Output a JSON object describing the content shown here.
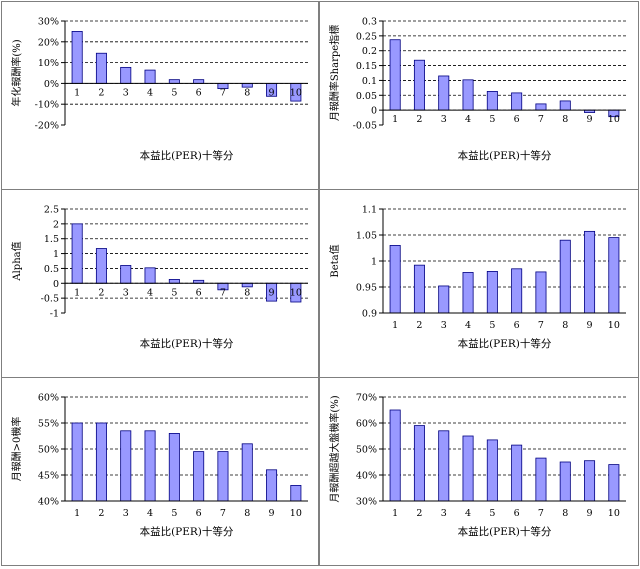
{
  "chart_data": [
    {
      "type": "bar",
      "title": "",
      "xlabel": "本益比(PER)十等分",
      "ylabel": "年化報酬率(%)",
      "categories": [
        "1",
        "2",
        "3",
        "4",
        "5",
        "6",
        "7",
        "8",
        "9",
        "10"
      ],
      "values": [
        25.0,
        14.5,
        7.7,
        6.4,
        1.8,
        1.8,
        -2.5,
        -1.8,
        -6.2,
        -8.5
      ],
      "ylim": [
        -20,
        30
      ],
      "yticks": [
        -20,
        -10,
        0,
        10,
        20,
        30
      ],
      "ytick_labels": [
        "-20%",
        "-10%",
        "0%",
        "10%",
        "20%",
        "30%"
      ],
      "category_labels_at_zero": true,
      "grid": "dashed",
      "legend": "none"
    },
    {
      "type": "bar",
      "title": "",
      "xlabel": "本益比(PER)十等分",
      "ylabel": "月報酬率Sharpe指標",
      "categories": [
        "1",
        "2",
        "3",
        "4",
        "5",
        "6",
        "7",
        "8",
        "9",
        "10"
      ],
      "values": [
        0.237,
        0.168,
        0.115,
        0.102,
        0.063,
        0.058,
        0.021,
        0.031,
        -0.008,
        -0.022
      ],
      "ylim": [
        -0.05,
        0.3
      ],
      "yticks": [
        -0.05,
        0,
        0.05,
        0.1,
        0.15,
        0.2,
        0.25,
        0.3
      ],
      "ytick_labels": [
        "-0.05",
        "0",
        "0.05",
        "0.1",
        "0.15",
        "0.2",
        "0.25",
        "0.3"
      ],
      "category_labels_at_zero": true,
      "grid": "dashed",
      "legend": "none"
    },
    {
      "type": "bar",
      "title": "",
      "xlabel": "本益比(PER)十等分",
      "ylabel": "Alpha值",
      "categories": [
        "1",
        "2",
        "3",
        "4",
        "5",
        "6",
        "7",
        "8",
        "9",
        "10"
      ],
      "values": [
        2.0,
        1.17,
        0.6,
        0.52,
        0.13,
        0.1,
        -0.22,
        -0.12,
        -0.6,
        -0.63
      ],
      "ylim": [
        -1,
        2.5
      ],
      "yticks": [
        -1,
        -0.5,
        0,
        0.5,
        1,
        1.5,
        2,
        2.5
      ],
      "ytick_labels": [
        "-1",
        "-0.5",
        "0",
        "0.5",
        "1",
        "1.5",
        "2",
        "2.5"
      ],
      "category_labels_at_zero": true,
      "grid": "dashed",
      "legend": "none"
    },
    {
      "type": "bar",
      "title": "",
      "xlabel": "本益比(PER)十等分",
      "ylabel": "Beta值",
      "categories": [
        "1",
        "2",
        "3",
        "4",
        "5",
        "6",
        "7",
        "8",
        "9",
        "10"
      ],
      "values": [
        1.03,
        0.992,
        0.952,
        0.978,
        0.98,
        0.985,
        0.979,
        1.04,
        1.057,
        1.045
      ],
      "ylim": [
        0.9,
        1.1
      ],
      "yticks": [
        0.9,
        0.95,
        1,
        1.05,
        1.1
      ],
      "ytick_labels": [
        "0.9",
        "0.95",
        "1",
        "1.05",
        "1.1"
      ],
      "category_labels_at_zero": false,
      "grid": "dashed",
      "legend": "none"
    },
    {
      "type": "bar",
      "title": "",
      "xlabel": "本益比(PER)十等分",
      "ylabel": "月報酬>0機率",
      "categories": [
        "1",
        "2",
        "3",
        "4",
        "5",
        "6",
        "7",
        "8",
        "9",
        "10"
      ],
      "values": [
        55.0,
        55.0,
        53.5,
        53.5,
        53.0,
        49.5,
        49.5,
        51.0,
        46.0,
        43.0
      ],
      "ylim": [
        40,
        60
      ],
      "yticks": [
        40,
        45,
        50,
        55,
        60
      ],
      "ytick_labels": [
        "40%",
        "45%",
        "50%",
        "55%",
        "60%"
      ],
      "category_labels_at_zero": false,
      "grid": "dashed",
      "legend": "none"
    },
    {
      "type": "bar",
      "title": "",
      "xlabel": "本益比(PER)十等分",
      "ylabel": "月報酬超越大盤機率(%)",
      "categories": [
        "1",
        "2",
        "3",
        "4",
        "5",
        "6",
        "7",
        "8",
        "9",
        "10"
      ],
      "values": [
        65.0,
        59.0,
        57.0,
        55.0,
        53.5,
        51.5,
        46.5,
        45.0,
        45.5,
        44.0
      ],
      "ylim": [
        30,
        70
      ],
      "yticks": [
        30,
        40,
        50,
        60,
        70
      ],
      "ytick_labels": [
        "30%",
        "40%",
        "50%",
        "60%",
        "70%"
      ],
      "category_labels_at_zero": false,
      "grid": "dashed",
      "legend": "none"
    }
  ],
  "colors": {
    "bar_fill": "#9999ff",
    "bar_stroke": "#000080",
    "axis": "#000000",
    "gridline": "#000000",
    "panel_border": "#7f7f7f",
    "background": "#ffffff"
  }
}
